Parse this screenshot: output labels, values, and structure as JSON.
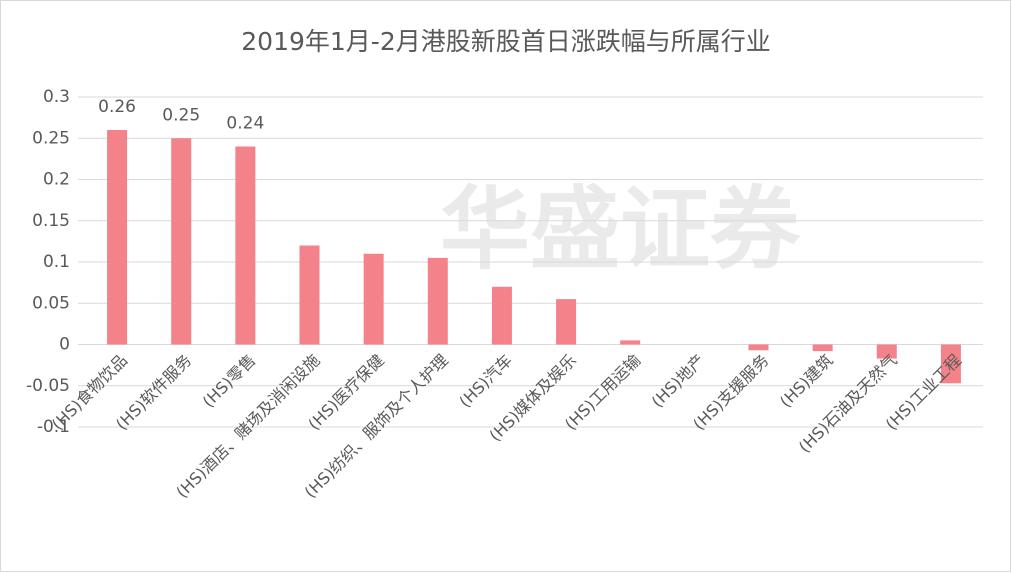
{
  "chart_data": {
    "type": "bar",
    "title": "2019年1月-2月港股新股首日涨跌幅与所属行业",
    "watermark": "华盛证券",
    "categories": [
      "(HS)食物饮品",
      "(HS)软件服务",
      "(HS)零售",
      "(HS)酒店、赌场及消闲设施",
      "(HS)医疗保健",
      "(HS)纺织、服饰及个人护理",
      "(HS)汽车",
      "(HS)媒体及娱乐",
      "(HS)工用运输",
      "(HS)地产",
      "(HS)支援服务",
      "(HS)建筑",
      "(HS)石油及天然气",
      "(HS)工业工程"
    ],
    "values": [
      0.26,
      0.25,
      0.24,
      0.12,
      0.11,
      0.105,
      0.07,
      0.055,
      0.005,
      0,
      -0.007,
      -0.008,
      -0.017,
      -0.047
    ],
    "value_labels": [
      "0.26",
      "0.25",
      "0.24",
      null,
      null,
      null,
      null,
      null,
      null,
      null,
      null,
      null,
      null,
      null
    ],
    "color": "#f4828a",
    "ylim": [
      -0.1,
      0.3
    ],
    "yticks": [
      -0.1,
      -0.05,
      0,
      0.05,
      0.1,
      0.15,
      0.2,
      0.25,
      0.3
    ],
    "grid": true
  }
}
